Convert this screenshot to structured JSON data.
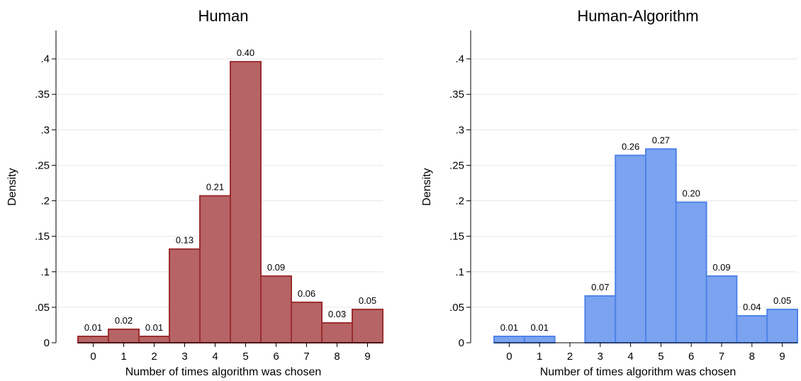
{
  "chart_data": [
    {
      "type": "bar",
      "title": "Human",
      "xlabel": "Number of times algorithm was chosen",
      "ylabel": "Density",
      "categories": [
        "0",
        "1",
        "2",
        "3",
        "4",
        "5",
        "6",
        "7",
        "8",
        "9"
      ],
      "values": [
        0.009,
        0.019,
        0.009,
        0.132,
        0.207,
        0.396,
        0.094,
        0.057,
        0.028,
        0.047
      ],
      "data_labels": [
        "0.01",
        "0.02",
        "0.01",
        "0.13",
        "0.21",
        "0.40",
        "0.09",
        "0.06",
        "0.03",
        "0.05"
      ],
      "yticks": [
        0,
        0.05,
        0.1,
        0.15,
        0.2,
        0.25,
        0.3,
        0.35,
        0.4
      ],
      "ytick_labels": [
        "0",
        ".05",
        ".1",
        ".15",
        ".2",
        ".25",
        ".3",
        ".35",
        ".4"
      ],
      "ylim": [
        0,
        0.44
      ],
      "grid": true,
      "bar_fill": "#b66466",
      "bar_stroke": "#9b2d2f"
    },
    {
      "type": "bar",
      "title": "Human-Algorithm",
      "xlabel": "Number of times algorithm was chosen",
      "ylabel": "Density",
      "categories": [
        "0",
        "1",
        "2",
        "3",
        "4",
        "5",
        "6",
        "7",
        "8",
        "9"
      ],
      "values": [
        0.009,
        0.009,
        0,
        0.066,
        0.264,
        0.273,
        0.198,
        0.094,
        0.038,
        0.047
      ],
      "data_labels": [
        "0.01",
        "0.01",
        null,
        "0.07",
        "0.26",
        "0.27",
        "0.20",
        "0.09",
        "0.04",
        "0.05"
      ],
      "yticks": [
        0,
        0.05,
        0.1,
        0.15,
        0.2,
        0.25,
        0.3,
        0.35,
        0.4
      ],
      "ytick_labels": [
        "0",
        ".05",
        ".1",
        ".15",
        ".2",
        ".25",
        ".3",
        ".35",
        ".4"
      ],
      "ylim": [
        0,
        0.44
      ],
      "grid": true,
      "bar_fill": "#7ba3f0",
      "bar_stroke": "#4f83e8"
    }
  ]
}
